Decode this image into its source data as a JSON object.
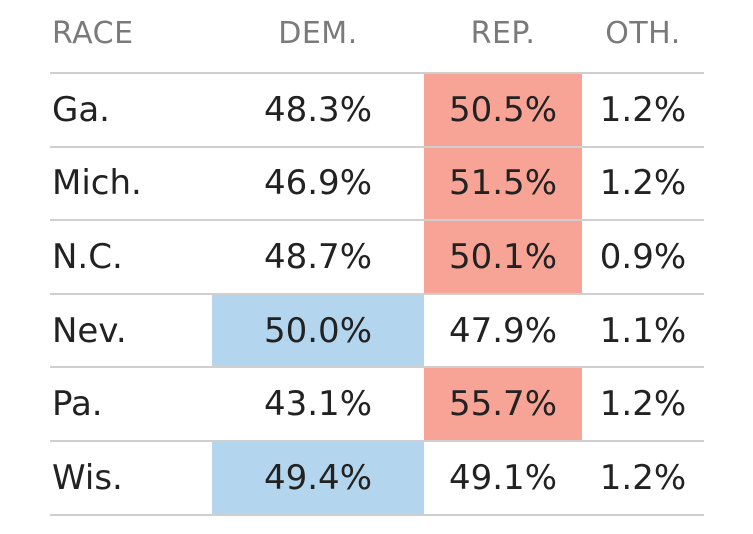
{
  "chart_data": {
    "type": "table",
    "columns": [
      "RACE",
      "DEM.",
      "REP.",
      "OTH."
    ],
    "rows": [
      {
        "race": "Ga.",
        "dem": "48.3%",
        "rep": "50.5%",
        "oth": "1.2%",
        "winner": "rep"
      },
      {
        "race": "Mich.",
        "dem": "46.9%",
        "rep": "51.5%",
        "oth": "1.2%",
        "winner": "rep"
      },
      {
        "race": "N.C.",
        "dem": "48.7%",
        "rep": "50.1%",
        "oth": "0.9%",
        "winner": "rep"
      },
      {
        "race": "Nev.",
        "dem": "50.0%",
        "rep": "47.9%",
        "oth": "1.1%",
        "winner": "dem"
      },
      {
        "race": "Pa.",
        "dem": "43.1%",
        "rep": "55.7%",
        "oth": "1.2%",
        "winner": "rep"
      },
      {
        "race": "Wis.",
        "dem": "49.4%",
        "rep": "49.1%",
        "oth": "1.2%",
        "winner": "dem"
      }
    ],
    "colors": {
      "dem_highlight": "#b3d6ee",
      "rep_highlight": "#f7a497",
      "header_text": "#7a7a7a",
      "body_text": "#222222",
      "rule": "#cfcfcf"
    }
  }
}
